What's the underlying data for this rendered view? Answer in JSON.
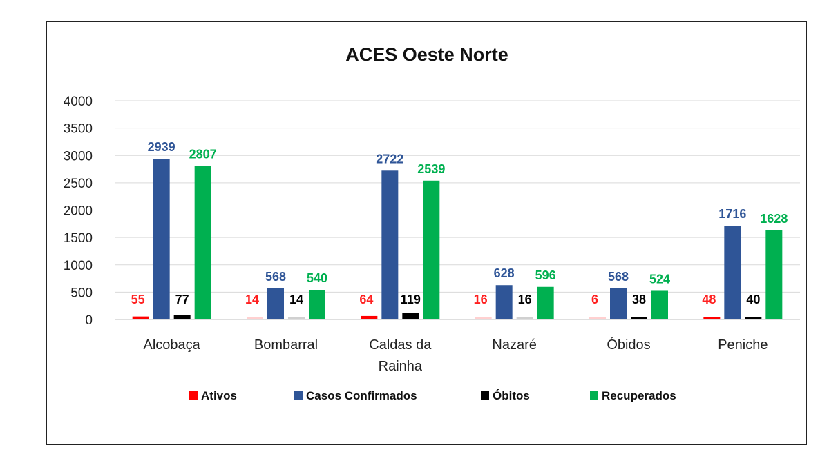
{
  "chart_data": {
    "type": "bar",
    "title": "ACES Oeste Norte",
    "xlabel": "",
    "ylabel": "",
    "ylim": [
      0,
      4000
    ],
    "yticks": [
      0,
      500,
      1000,
      1500,
      2000,
      2500,
      3000,
      3500,
      4000
    ],
    "grid": true,
    "legend_position": "bottom",
    "categories": [
      [
        "Alcobaça"
      ],
      [
        "Bombarral"
      ],
      [
        "Caldas da",
        "Rainha"
      ],
      [
        "Nazaré"
      ],
      [
        "Óbidos"
      ],
      [
        "Peniche"
      ]
    ],
    "series": [
      {
        "name": "Ativos",
        "color": "#ff0000",
        "label_color": "#ff2020",
        "values": [
          55,
          14,
          64,
          16,
          6,
          48
        ]
      },
      {
        "name": "Casos Confirmados",
        "color": "#2f5597",
        "label_color": "#2f5597",
        "values": [
          2939,
          568,
          2722,
          628,
          568,
          1716
        ]
      },
      {
        "name": "Óbitos",
        "color": "#000000",
        "label_color": "#000000",
        "values": [
          77,
          14,
          119,
          16,
          38,
          40
        ]
      },
      {
        "name": "Recuperados",
        "color": "#00b050",
        "label_color": "#00b050",
        "values": [
          2807,
          540,
          2539,
          596,
          524,
          1628
        ]
      }
    ]
  }
}
